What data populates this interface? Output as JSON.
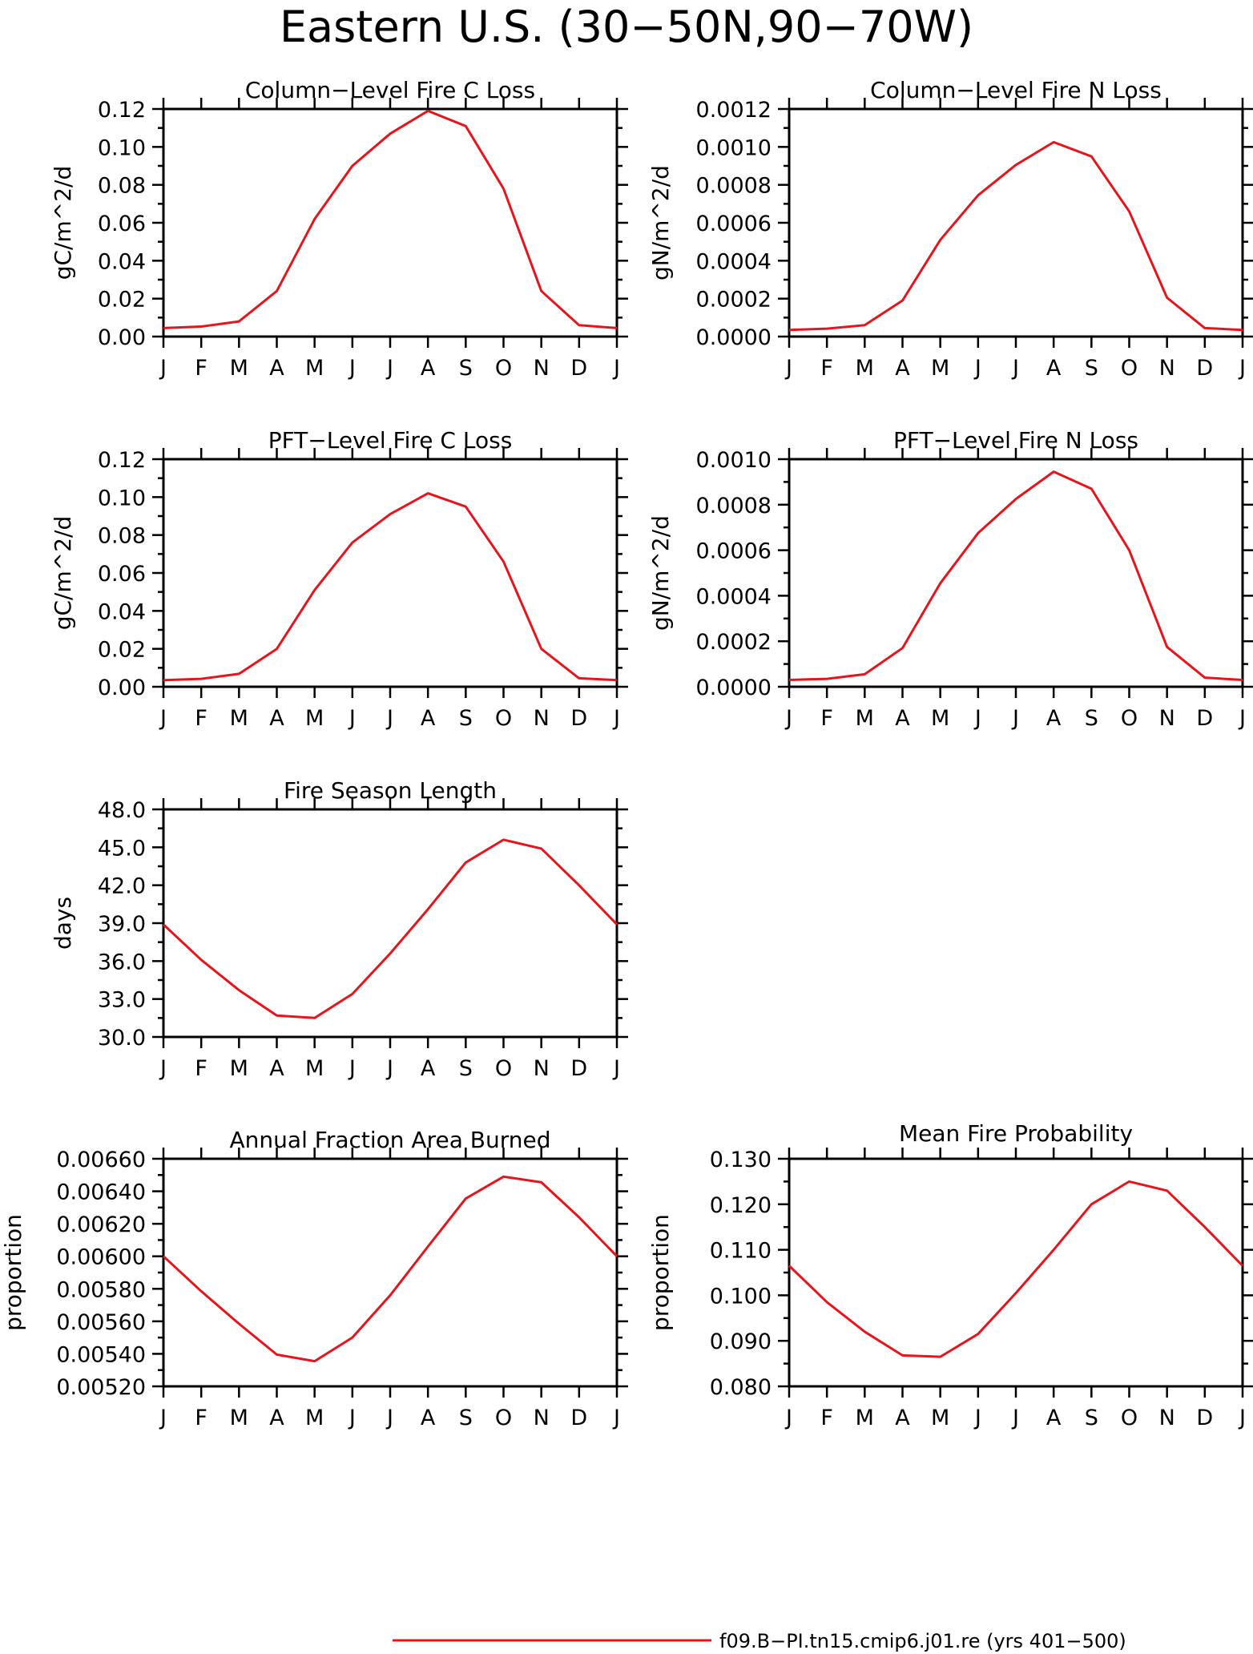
{
  "figure": {
    "title": "Eastern U.S. (30−50N,90−70W)",
    "months": [
      "J",
      "F",
      "M",
      "A",
      "M",
      "J",
      "J",
      "A",
      "S",
      "O",
      "N",
      "D",
      "J"
    ],
    "line_color": "#e8141b",
    "legend": {
      "label": "f09.B−PI.tn15.cmip6.j01.re (yrs 401−500)"
    }
  },
  "chart_data": [
    {
      "type": "line",
      "title": "Column−Level Fire C Loss",
      "ylabel": "gC/m^2/d",
      "ylim": [
        0,
        0.12
      ],
      "yticks": [
        0,
        0.02,
        0.04,
        0.06,
        0.08,
        0.1,
        0.12
      ],
      "ytick_labels": [
        "0.00",
        "0.02",
        "0.04",
        "0.06",
        "0.08",
        "0.10",
        "0.12"
      ],
      "series": [
        {
          "values": [
            0.0045,
            0.0053,
            0.008,
            0.024,
            0.062,
            0.09,
            0.107,
            0.119,
            0.111,
            0.078,
            0.024,
            0.006,
            0.0045
          ]
        }
      ]
    },
    {
      "type": "line",
      "title": "Column−Level Fire N Loss",
      "ylabel": "gN/m^2/d",
      "ylim": [
        0,
        0.0012
      ],
      "yticks": [
        0,
        0.0002,
        0.0004,
        0.0006,
        0.0008,
        0.001,
        0.0012
      ],
      "ytick_labels": [
        "0.0000",
        "0.0002",
        "0.0004",
        "0.0006",
        "0.0008",
        "0.0010",
        "0.0012"
      ],
      "series": [
        {
          "values": [
            3.5e-05,
            4.2e-05,
            6e-05,
            0.00019,
            0.00051,
            0.000745,
            0.000905,
            0.001025,
            0.00095,
            0.00066,
            0.000205,
            4.5e-05,
            3.5e-05
          ]
        }
      ]
    },
    {
      "type": "line",
      "title": "PFT−Level Fire C Loss",
      "ylabel": "gC/m^2/d",
      "ylim": [
        0,
        0.12
      ],
      "yticks": [
        0,
        0.02,
        0.04,
        0.06,
        0.08,
        0.1,
        0.12
      ],
      "ytick_labels": [
        "0.00",
        "0.02",
        "0.04",
        "0.06",
        "0.08",
        "0.10",
        "0.12"
      ],
      "series": [
        {
          "values": [
            0.0035,
            0.0042,
            0.0068,
            0.02,
            0.051,
            0.076,
            0.091,
            0.102,
            0.095,
            0.066,
            0.02,
            0.0045,
            0.0035
          ]
        }
      ]
    },
    {
      "type": "line",
      "title": "PFT−Level Fire N Loss",
      "ylabel": "gN/m^2/d",
      "ylim": [
        0,
        0.001
      ],
      "yticks": [
        0,
        0.0002,
        0.0004,
        0.0006,
        0.0008,
        0.001
      ],
      "ytick_labels": [
        "0.0000",
        "0.0002",
        "0.0004",
        "0.0006",
        "0.0008",
        "0.0010"
      ],
      "series": [
        {
          "values": [
            3e-05,
            3.5e-05,
            5.5e-05,
            0.00017,
            0.000455,
            0.000675,
            0.000825,
            0.000945,
            0.00087,
            0.0006,
            0.000175,
            4e-05,
            3e-05
          ]
        }
      ]
    },
    {
      "type": "line",
      "title": "Fire Season Length",
      "ylabel": "days",
      "ylim": [
        30,
        48
      ],
      "yticks": [
        30,
        33,
        36,
        39,
        42,
        45,
        48
      ],
      "ytick_labels": [
        "30.0",
        "33.0",
        "36.0",
        "39.0",
        "42.0",
        "45.0",
        "48.0"
      ],
      "series": [
        {
          "values": [
            38.9,
            36.1,
            33.7,
            31.7,
            31.5,
            33.4,
            36.6,
            40.1,
            43.8,
            45.6,
            44.9,
            42.0,
            38.9
          ]
        }
      ]
    },
    {
      "type": "line",
      "title": "Annual Fraction Area Burned",
      "ylabel": "proportion",
      "ylim": [
        0.0052,
        0.0066
      ],
      "yticks": [
        0.0052,
        0.0054,
        0.0056,
        0.0058,
        0.006,
        0.0062,
        0.0064,
        0.0066
      ],
      "ytick_labels": [
        "0.00520",
        "0.00540",
        "0.00560",
        "0.00580",
        "0.00600",
        "0.00620",
        "0.00640",
        "0.00660"
      ],
      "series": [
        {
          "values": [
            0.006,
            0.005785,
            0.005585,
            0.005395,
            0.005355,
            0.0055,
            0.00576,
            0.00606,
            0.006355,
            0.00649,
            0.006455,
            0.00624,
            0.006
          ]
        }
      ]
    },
    {
      "type": "line",
      "title": "Mean Fire Probability",
      "ylabel": "proportion",
      "ylim": [
        0.08,
        0.13
      ],
      "yticks": [
        0.08,
        0.09,
        0.1,
        0.11,
        0.12,
        0.13
      ],
      "ytick_labels": [
        "0.080",
        "0.090",
        "0.100",
        "0.110",
        "0.120",
        "0.130"
      ],
      "series": [
        {
          "values": [
            0.1065,
            0.0985,
            0.092,
            0.0868,
            0.0865,
            0.0915,
            0.1005,
            0.11,
            0.12,
            0.125,
            0.123,
            0.115,
            0.1065
          ]
        }
      ]
    }
  ]
}
